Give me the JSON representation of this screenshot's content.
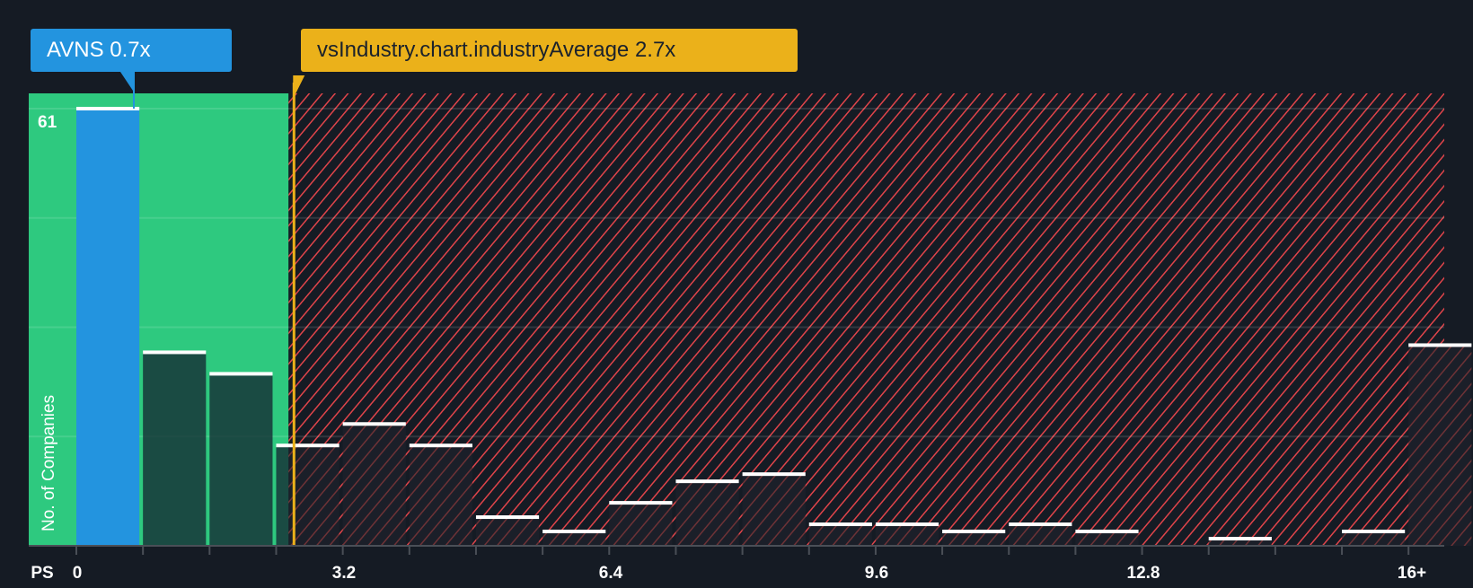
{
  "callouts": {
    "company": {
      "label": "AVNS 0.7x",
      "value": 0.7,
      "color": "#2394df"
    },
    "industry": {
      "label": "vsIndustry.chart.industryAverage 2.7x",
      "value": 2.7,
      "color": "#ebb11a"
    }
  },
  "axes": {
    "x_title": "PS",
    "y_title": "No. of Companies",
    "y_max_label": "61",
    "x_tick_labels": [
      "0",
      "3.2",
      "6.4",
      "9.6",
      "12.8",
      "16+"
    ]
  },
  "colors": {
    "background": "#151b24",
    "fair_zone": "#2ec97f",
    "overvalued_hatch": "#e0444a",
    "company_bar": "#2394df",
    "bar_outline": "#ffffff"
  },
  "chart_data": {
    "type": "bar",
    "title": "",
    "xlabel": "PS",
    "ylabel": "No. of Companies",
    "categories": [
      "0-0.8",
      "0.8-1.6",
      "1.6-2.4",
      "2.4-3.2",
      "3.2-4.0",
      "4.0-4.8",
      "4.8-5.6",
      "5.6-6.4",
      "6.4-7.2",
      "7.2-8.0",
      "8.0-8.8",
      "8.8-9.6",
      "9.6-10.4",
      "10.4-11.2",
      "11.2-12.0",
      "12.0-12.8",
      "12.8-13.6",
      "13.6-14.4",
      "14.4-15.2",
      "15.2-16.0",
      "16+"
    ],
    "values": [
      61,
      27,
      24,
      14,
      17,
      14,
      4,
      2,
      6,
      9,
      10,
      3,
      3,
      2,
      3,
      2,
      0,
      1,
      0,
      2,
      28
    ],
    "x_ticks": [
      0,
      3.2,
      6.4,
      9.6,
      12.8,
      16
    ],
    "x_tick_labels": [
      "0",
      "3.2",
      "6.4",
      "9.6",
      "12.8",
      "16+"
    ],
    "ylim": [
      0,
      61
    ],
    "y_tick_labels": [
      "61"
    ],
    "grid": true,
    "annotations": [
      {
        "text": "AVNS 0.7x",
        "x": 0.7,
        "type": "company_marker"
      },
      {
        "text": "vsIndustry.chart.industryAverage 2.7x",
        "x": 2.7,
        "type": "industry_average_line"
      }
    ],
    "highlighted_bin": 0,
    "fair_zone_range": [
      0,
      2.7
    ],
    "overvalued_zone_range": [
      2.7,
      16.5
    ]
  }
}
